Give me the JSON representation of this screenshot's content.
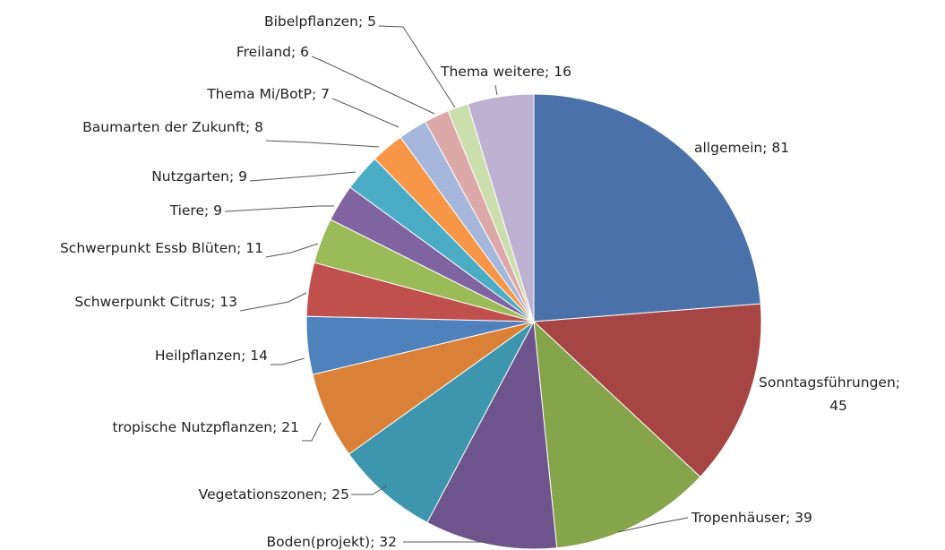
{
  "chart_data": {
    "type": "pie",
    "start_angle": "12 o'clock",
    "direction": "clockwise",
    "legend": "none",
    "data_labels": "outside, category; value",
    "slices": [
      {
        "name": "allgemein",
        "value": 81,
        "label": "allgemein; 81",
        "color": "#4A72A8"
      },
      {
        "name": "Sonntagsführungen",
        "value": 45,
        "label": "Sonntagsführungen;",
        "label2": "45",
        "color": "#A64644"
      },
      {
        "name": "Tropenhäuser",
        "value": 39,
        "label": "Tropenhäuser; 39",
        "color": "#86A44A"
      },
      {
        "name": "Boden(projekt)",
        "value": 32,
        "label": "Boden(projekt); 32",
        "color": "#6E548D"
      },
      {
        "name": "Vegetationszonen",
        "value": 25,
        "label": "Vegetationszonen; 25",
        "color": "#3D96AE"
      },
      {
        "name": "tropische Nutzpflanzen",
        "value": 21,
        "label": "tropische Nutzpflanzen; 21",
        "color": "#DA8137"
      },
      {
        "name": "Heilpflanzen",
        "value": 14,
        "label": "Heilpflanzen; 14",
        "color": "#4F81BD"
      },
      {
        "name": "Schwerpunkt Citrus",
        "value": 13,
        "label": "Schwerpunkt  Citrus; 13",
        "color": "#C0504D"
      },
      {
        "name": "Schwerpunkt Essb Blüten",
        "value": 11,
        "label": "Schwerpunkt  Essb Blüten; 11",
        "color": "#9BBB59"
      },
      {
        "name": "Tiere",
        "value": 9,
        "label": "Tiere; 9",
        "color": "#8064A2"
      },
      {
        "name": "Nutzgarten",
        "value": 9,
        "label": "Nutzgarten; 9",
        "color": "#4BACC6"
      },
      {
        "name": "Baumarten der Zukunft",
        "value": 8,
        "label": "Baumarten der Zukunft; 8",
        "color": "#F79646"
      },
      {
        "name": "Thema Mi/BotP",
        "value": 7,
        "label": "Thema Mi/BotP; 7",
        "color": "#A5B7DA"
      },
      {
        "name": "Freiland",
        "value": 6,
        "label": "Freiland; 6",
        "color": "#DCA8A8"
      },
      {
        "name": "Bibelpflanzen",
        "value": 5,
        "label": "Bibelpflanzen; 5",
        "color": "#CCDDAE"
      },
      {
        "name": "Thema weitere",
        "value": 16,
        "label": "Thema weitere; 16",
        "color": "#BEB2D2"
      }
    ]
  }
}
